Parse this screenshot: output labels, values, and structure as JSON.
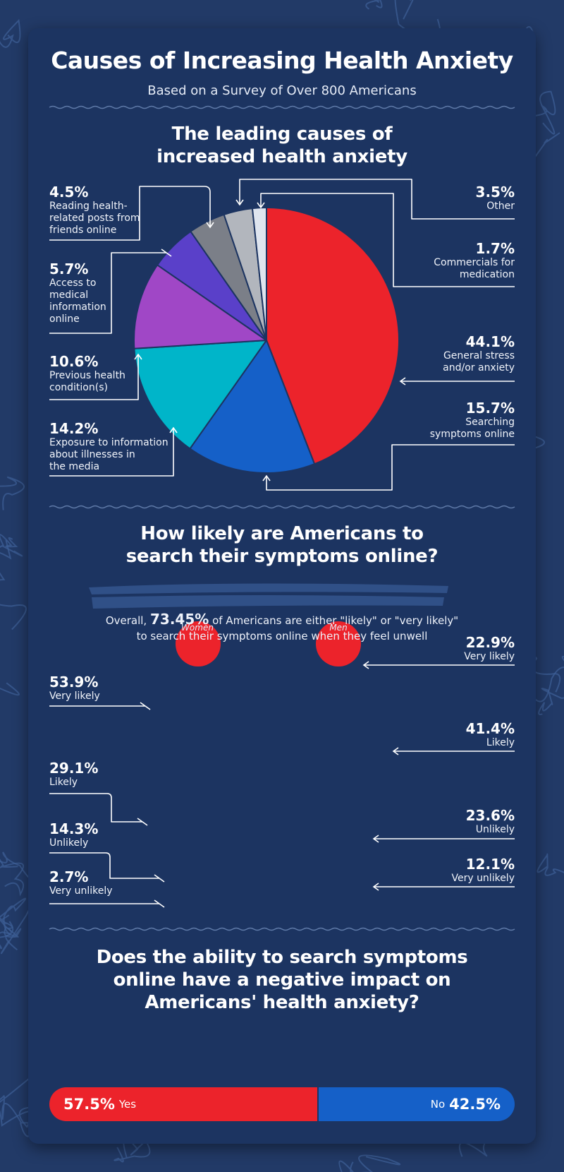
{
  "title": "Causes of Increasing Health Anxiety",
  "subtitle": "Based on a Survey of Over 800 Americans",
  "colors": {
    "red": "#ec232b",
    "blue": "#1560c8",
    "teal": "#00b5c9",
    "purple": "#a047c6",
    "violet": "#5a40c9",
    "gray": "#7b7f88",
    "lightgray": "#b2b6bd",
    "verylight": "#dfe5ef",
    "card": "#1c3461"
  },
  "section1": {
    "title_line1": "The leading causes of",
    "title_line2": "increased health anxiety"
  },
  "section2": {
    "title_line1": "How likely are Americans to",
    "title_line2": "search their symptoms online?",
    "overall_prefix": "Overall,",
    "overall_value": "73.45%",
    "overall_suffix": "of Americans are either \"likely\" or \"very likely\"",
    "overall_line2": "to search their symptoms online when they feel unwell",
    "women_label": "Women",
    "men_label": "Men"
  },
  "section3": {
    "title_line1": "Does the ability to search symptoms",
    "title_line2": "online have a negative impact on",
    "title_line3": "Americans' health anxiety?",
    "yes_value": "57.5%",
    "yes_label": "Yes",
    "no_value": "42.5%",
    "no_label": "No"
  },
  "chart_data": [
    {
      "type": "pie",
      "title": "The leading causes of increased health anxiety",
      "slices": [
        {
          "label": "General stress and/or anxiety",
          "value": 44.1,
          "display": "44.1%"
        },
        {
          "label": "Searching symptoms online",
          "value": 15.7,
          "display": "15.7%"
        },
        {
          "label": "Exposure to information about illnesses in the media",
          "value": 14.2,
          "display": "14.2%"
        },
        {
          "label": "Previous health condition(s)",
          "value": 10.6,
          "display": "10.6%"
        },
        {
          "label": "Access to medical information online",
          "value": 5.7,
          "display": "5.7%"
        },
        {
          "label": "Reading health-related posts from friends online",
          "value": 4.5,
          "display": "4.5%"
        },
        {
          "label": "Other",
          "value": 3.5,
          "display": "3.5%"
        },
        {
          "label": "Commercials for medication",
          "value": 1.7,
          "display": "1.7%"
        }
      ],
      "label_lines": {
        "general_stress": [
          "General stress",
          "and/or anxiety"
        ],
        "searching": [
          "Searching",
          "symptoms online"
        ],
        "exposure": [
          "Exposure to information",
          "about illnesses in",
          "the media"
        ],
        "previous": [
          "Previous health",
          "condition(s)"
        ],
        "access": [
          "Access to",
          "medical",
          "information",
          "online"
        ],
        "reading": [
          "Reading health-",
          "related posts from",
          "friends online"
        ],
        "other": [
          "Other"
        ],
        "commercials": [
          "Commercials for",
          "medication"
        ]
      }
    },
    {
      "type": "bar",
      "title": "How likely are Americans to search their symptoms online?",
      "categories": [
        "Very likely",
        "Likely",
        "Unlikely",
        "Very unlikely"
      ],
      "series": [
        {
          "name": "Women",
          "values": [
            53.9,
            29.1,
            14.3,
            2.7
          ],
          "display": [
            "53.9%",
            "29.1%",
            "14.3%",
            "2.7%"
          ]
        },
        {
          "name": "Men",
          "values": [
            22.9,
            41.4,
            23.6,
            12.1
          ],
          "display": [
            "22.9%",
            "41.4%",
            "23.6%",
            "12.1%"
          ]
        }
      ]
    },
    {
      "type": "bar",
      "title": "Does the ability to search symptoms online have a negative impact on Americans' health anxiety?",
      "categories": [
        "Yes",
        "No"
      ],
      "values": [
        57.5,
        42.5
      ]
    }
  ]
}
